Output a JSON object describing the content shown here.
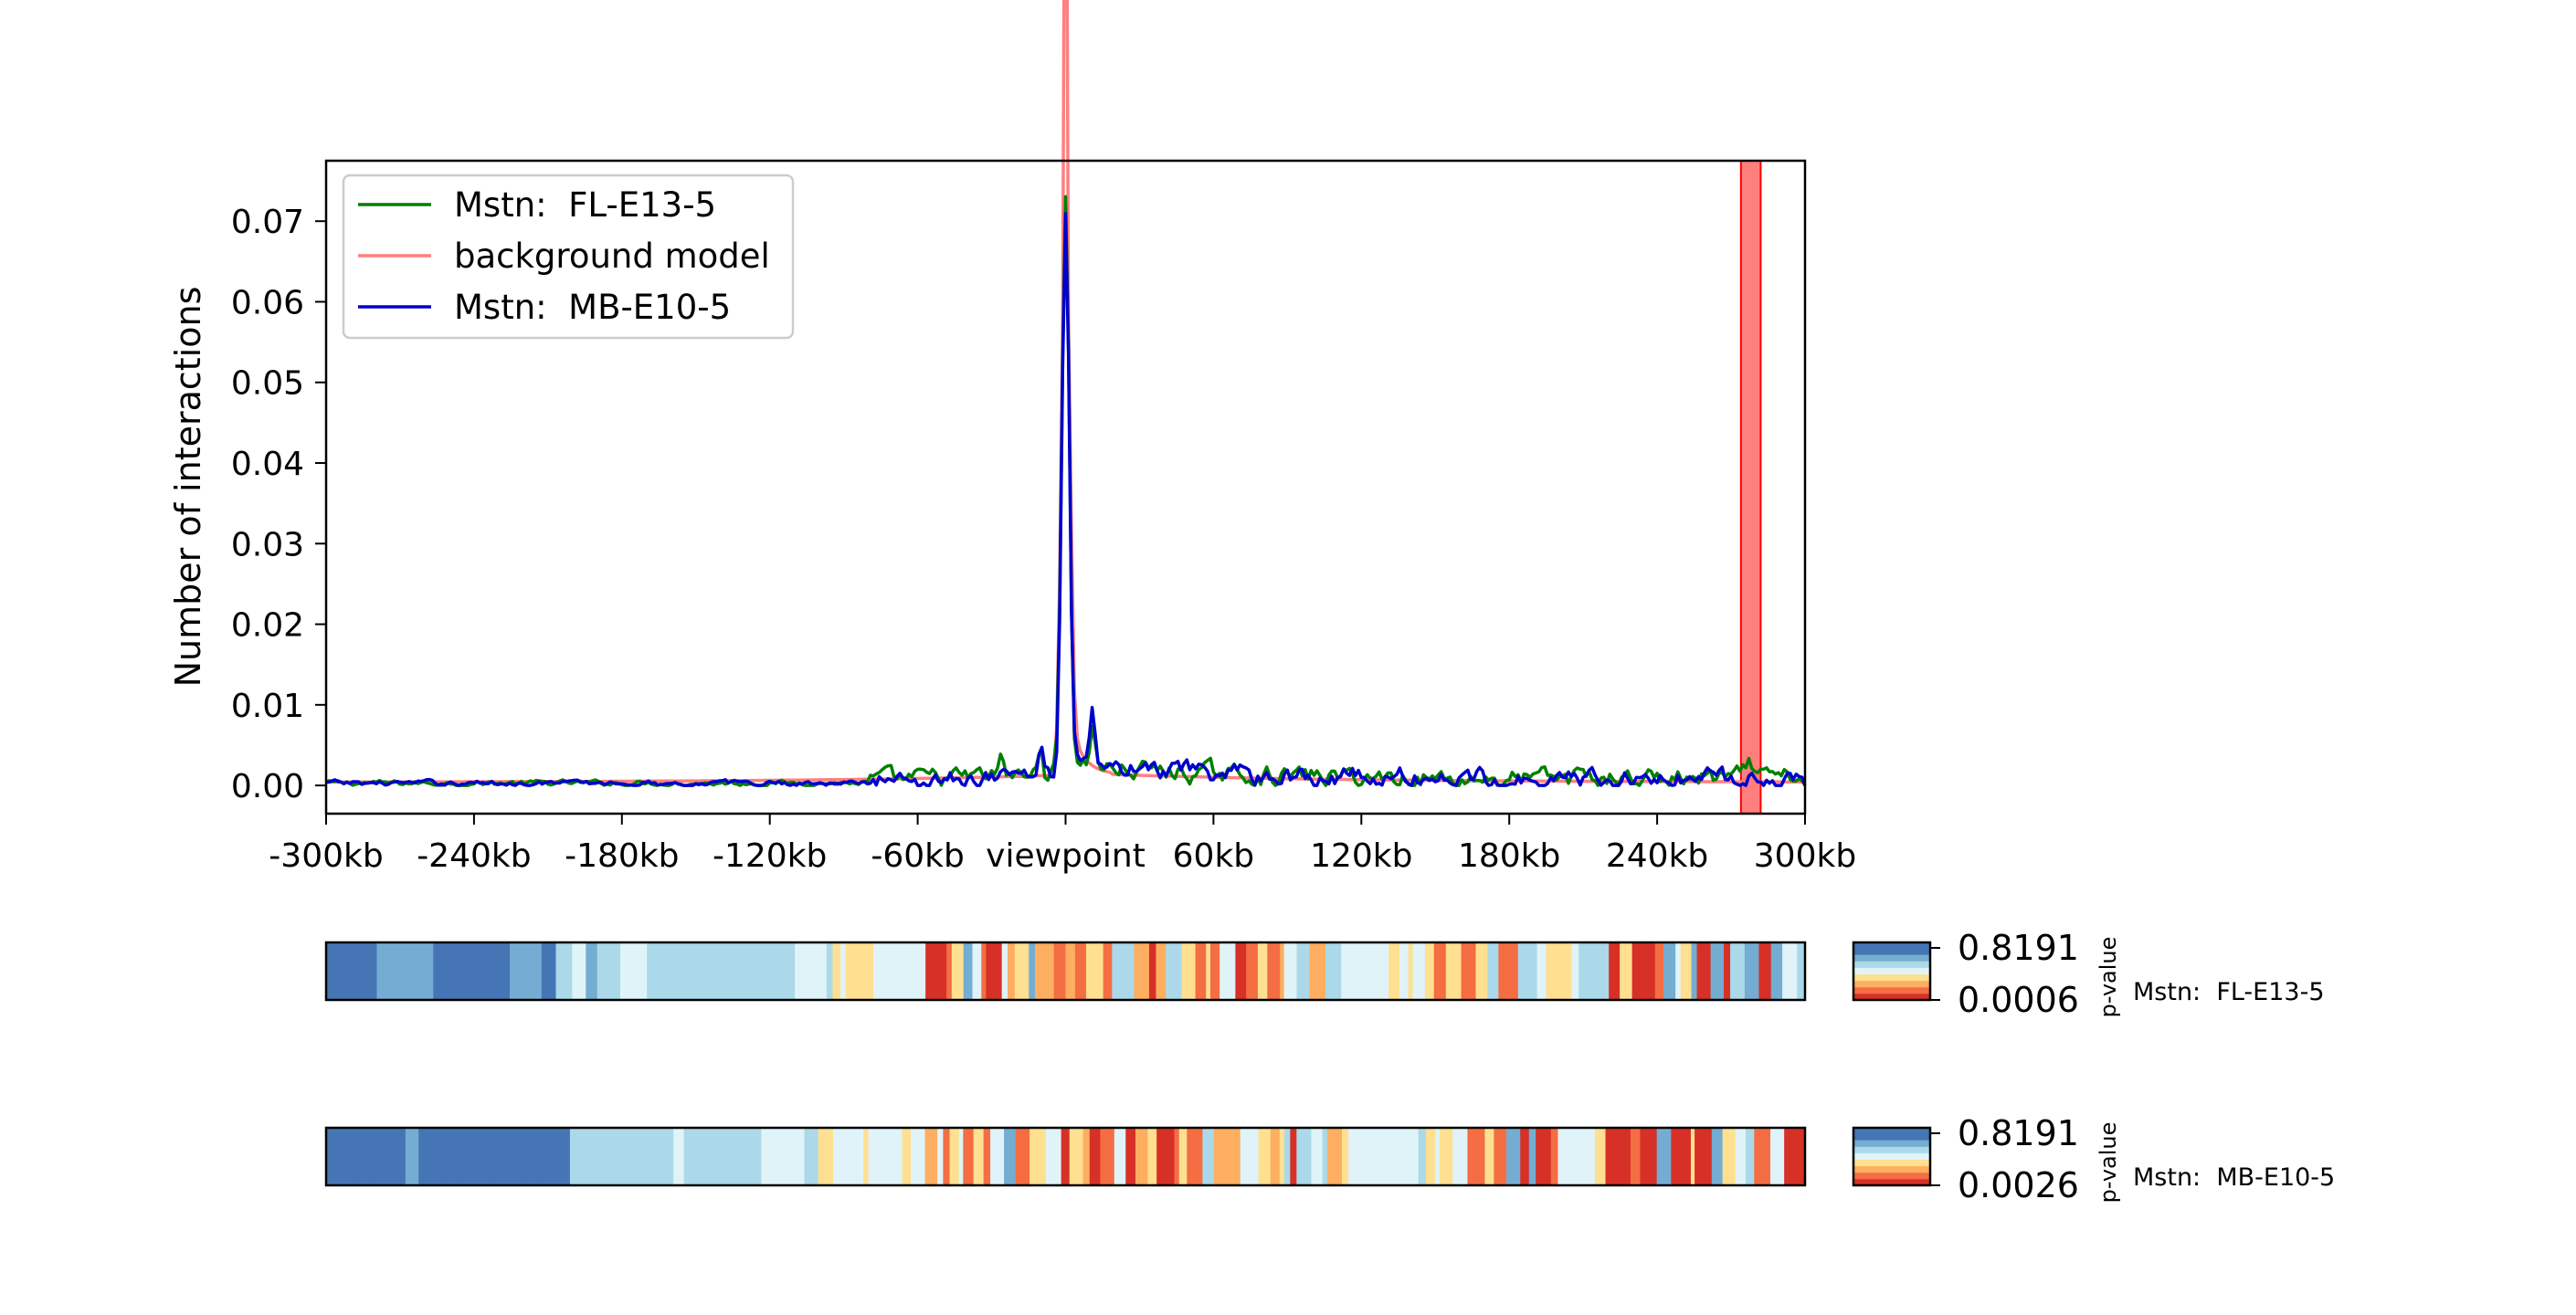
{
  "chart_data": {
    "type": "line",
    "ylabel": "Number of interactions",
    "x_ticks": [
      "-300kb",
      "-240kb",
      "-180kb",
      "-120kb",
      "-60kb",
      "viewpoint",
      "60kb",
      "120kb",
      "180kb",
      "240kb",
      "300kb"
    ],
    "x_range_kb": [
      -300,
      300
    ],
    "y_ticks": [
      "0.00",
      "0.01",
      "0.02",
      "0.03",
      "0.04",
      "0.05",
      "0.06",
      "0.07"
    ],
    "ylim": [
      -0.0035,
      0.0775
    ],
    "legend_position": "top-left",
    "highlight_region_kb": [
      274,
      282
    ],
    "highlight_color": "#ff0000",
    "series": [
      {
        "name": "Mstn:  FL-E13-5",
        "color": "#008000",
        "peak": 0.072
      },
      {
        "name": "background model",
        "color": "#ff7f7f",
        "peak": 0.074
      },
      {
        "name": "Mstn:  MB-E10-5",
        "color": "#0000cd",
        "peak": 0.07
      }
    ],
    "tracks": [
      {
        "name": "Mstn:  FL-E13-5",
        "pvalue_max": "0.8191",
        "pvalue_min": "0.0006",
        "colorbar_title": "p-value"
      },
      {
        "name": "Mstn:  MB-E10-5",
        "pvalue_max": "0.8191",
        "pvalue_min": "0.0026",
        "colorbar_title": "p-value"
      }
    ],
    "colormap": [
      "#d73027",
      "#f46d43",
      "#fdae61",
      "#fee090",
      "#e0f3f8",
      "#abd9e9",
      "#74add1",
      "#4575b4"
    ]
  }
}
